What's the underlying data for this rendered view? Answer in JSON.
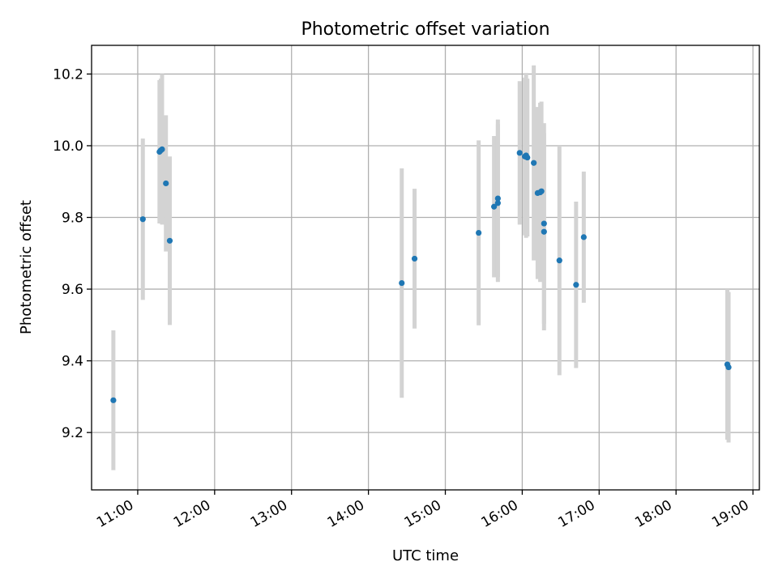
{
  "chart_data": {
    "type": "scatter",
    "title": "Photometric offset variation",
    "xlabel": "UTC time",
    "ylabel": "Photometric offset",
    "xlim": [
      "10:24",
      "19:05"
    ],
    "ylim": [
      9.04,
      10.28
    ],
    "x_ticks": [
      "11:00",
      "12:00",
      "13:00",
      "14:00",
      "15:00",
      "16:00",
      "17:00",
      "18:00",
      "19:00"
    ],
    "y_ticks": [
      "9.2",
      "9.4",
      "9.6",
      "9.8",
      "10.0",
      "10.2"
    ],
    "grid": true,
    "legend": "none",
    "point_color": "#1f77b4",
    "errorbar_color": "#d3d3d3",
    "points": [
      {
        "x": "10:41",
        "y": 9.29,
        "err": 0.195
      },
      {
        "x": "11:04",
        "y": 9.795,
        "err": 0.225
      },
      {
        "x": "11:17",
        "y": 9.983,
        "err": 0.2
      },
      {
        "x": "11:18",
        "y": 9.987,
        "err": 0.2
      },
      {
        "x": "11:19",
        "y": 9.99,
        "err": 0.21
      },
      {
        "x": "11:22",
        "y": 9.895,
        "err": 0.19
      },
      {
        "x": "11:25",
        "y": 9.735,
        "err": 0.235
      },
      {
        "x": "14:26",
        "y": 9.617,
        "err": 0.32
      },
      {
        "x": "14:36",
        "y": 9.685,
        "err": 0.195
      },
      {
        "x": "15:26",
        "y": 9.757,
        "err": 0.258
      },
      {
        "x": "15:38",
        "y": 9.83,
        "err": 0.197
      },
      {
        "x": "15:41",
        "y": 9.84,
        "err": 0.22
      },
      {
        "x": "15:41",
        "y": 9.853,
        "err": 0.22
      },
      {
        "x": "15:58",
        "y": 9.98,
        "err": 0.2
      },
      {
        "x": "16:02",
        "y": 9.97,
        "err": 0.22
      },
      {
        "x": "16:03",
        "y": 9.973,
        "err": 0.23
      },
      {
        "x": "16:04",
        "y": 9.967,
        "err": 0.22
      },
      {
        "x": "16:09",
        "y": 9.952,
        "err": 0.272
      },
      {
        "x": "16:12",
        "y": 9.868,
        "err": 0.24
      },
      {
        "x": "16:14",
        "y": 9.87,
        "err": 0.25
      },
      {
        "x": "16:15",
        "y": 9.873,
        "err": 0.25
      },
      {
        "x": "16:17",
        "y": 9.76,
        "err": 0.275
      },
      {
        "x": "16:17",
        "y": 9.783,
        "err": 0.28
      },
      {
        "x": "16:29",
        "y": 9.68,
        "err": 0.32
      },
      {
        "x": "16:42",
        "y": 9.612,
        "err": 0.232
      },
      {
        "x": "16:48",
        "y": 9.745,
        "err": 0.183
      },
      {
        "x": "18:40",
        "y": 9.39,
        "err": 0.21
      },
      {
        "x": "18:41",
        "y": 9.382,
        "err": 0.21
      }
    ]
  }
}
